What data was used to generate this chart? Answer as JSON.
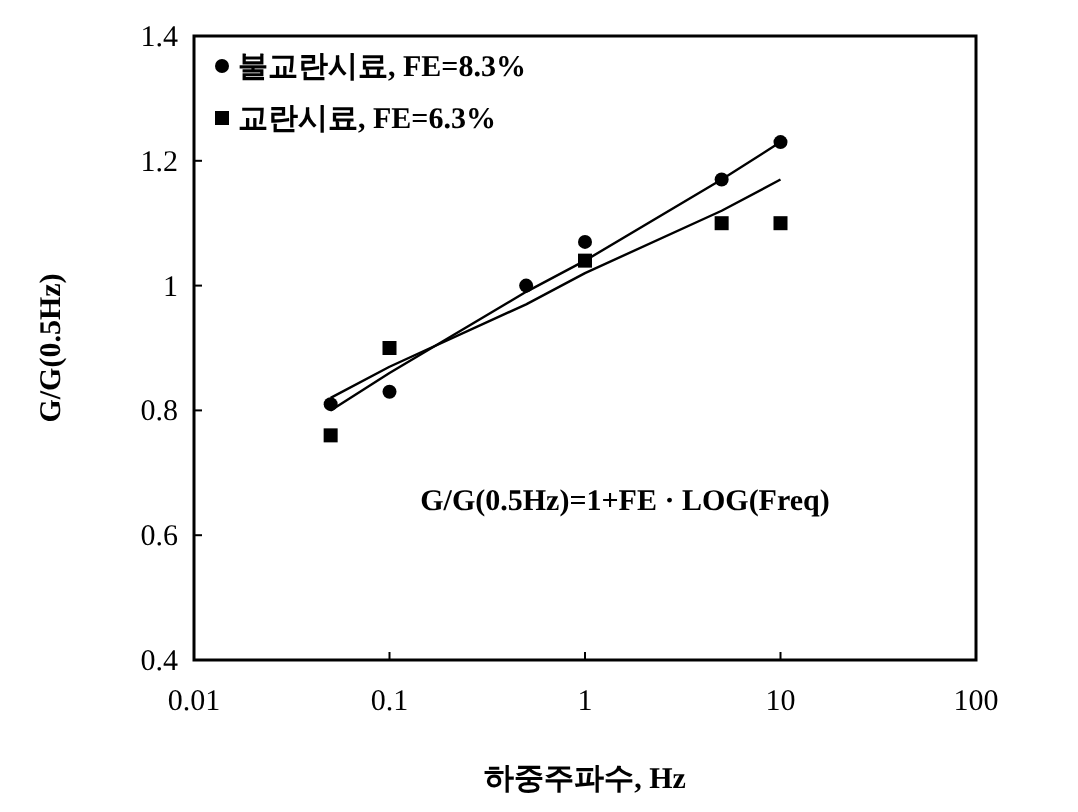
{
  "chart_data": {
    "type": "scatter",
    "xlabel": "하중주파수, Hz",
    "ylabel": "G/G(0.5Hz)",
    "log": "x",
    "xlim": [
      0.01,
      100
    ],
    "xticks": [
      0.01,
      0.1,
      1,
      10,
      100
    ],
    "ylim": [
      0.4,
      1.4
    ],
    "yticks": [
      0.4,
      0.6,
      0.8,
      1,
      1.2,
      1.4
    ],
    "grid": false,
    "legend": "top left",
    "x": [
      0.05,
      0.1,
      0.5,
      1,
      5,
      10
    ],
    "series": [
      {
        "name": "불교란시료, FE=8.3%",
        "color": "#000000",
        "marker": "circle",
        "values": [
          0.81,
          0.83,
          1.0,
          1.07,
          1.17,
          1.23
        ]
      },
      {
        "name": "교란시료, FE=6.3%",
        "color": "#000000",
        "marker": "square",
        "values": [
          0.76,
          0.9,
          null,
          1.04,
          1.1,
          1.1
        ]
      },
      {
        "type": "line",
        "color": "#000000",
        "values": [
          0.8,
          0.86,
          0.99,
          1.04,
          1.17,
          1.23
        ]
      },
      {
        "type": "line",
        "color": "#000000",
        "values": [
          0.82,
          0.87,
          0.97,
          1.02,
          1.12,
          1.17
        ]
      }
    ],
    "annotations": [
      "G/G(0.5Hz)=1+FE · LOG(Freq)"
    ]
  }
}
